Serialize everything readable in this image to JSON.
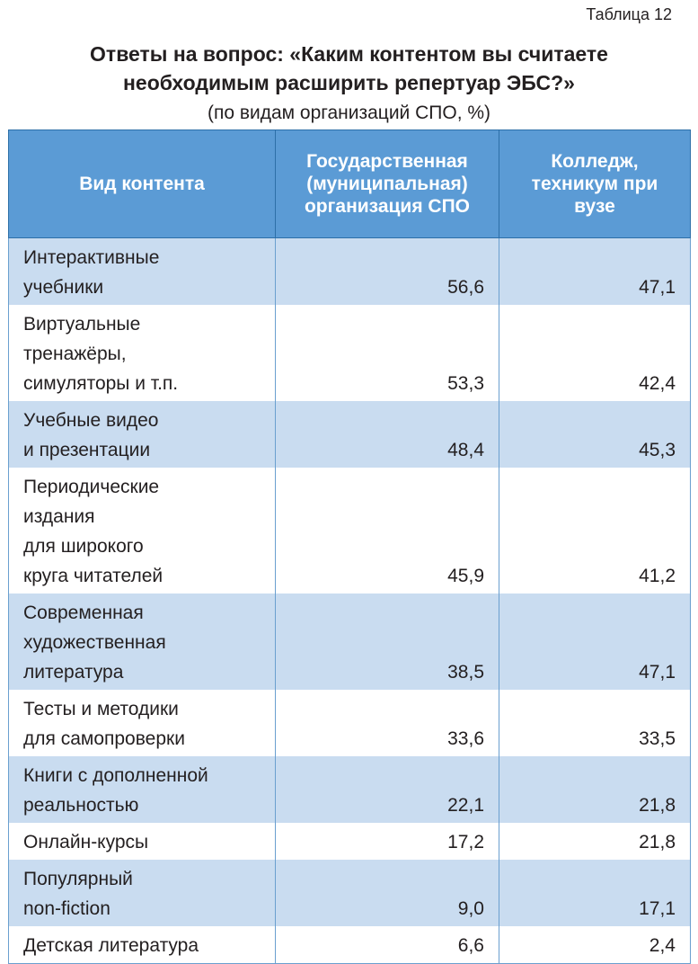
{
  "table_number": "Таблица 12",
  "title_line1": "Ответы на вопрос: «Каким контентом вы считаете",
  "title_line2": "необходимым расширить репертуар ЭБС?»",
  "subtitle": "(по видам организаций СПО, %)",
  "headers": {
    "col1": "Вид контента",
    "col2": "Государственная (муниципальная) организация СПО",
    "col3": "Колледж, техникум при вузе"
  },
  "rows": [
    {
      "label": "Интерактивные учебники",
      "v1": "56,6",
      "v2": "47,1"
    },
    {
      "label": "Виртуальные тренажёры, симуляторы и т.п.",
      "v1": "53,3",
      "v2": "42,4"
    },
    {
      "label": "Учебные видео и презентации",
      "v1": "48,4",
      "v2": "45,3"
    },
    {
      "label": "Периодические издания для широкого круга читателей",
      "v1": "45,9",
      "v2": "41,2"
    },
    {
      "label": "Современная художественная литература",
      "v1": "38,5",
      "v2": "47,1"
    },
    {
      "label": "Тесты и методики для самопроверки",
      "v1": "33,6",
      "v2": "33,5"
    },
    {
      "label": "Книги с дополненной реальностью",
      "v1": "22,1",
      "v2": "21,8"
    },
    {
      "label": "Онлайн-курсы",
      "v1": "17,2",
      "v2": "21,8"
    },
    {
      "label": "Популярный non-fiction",
      "v1": "9,0",
      "v2": "17,1"
    },
    {
      "label": "Детская литература",
      "v1": "6,6",
      "v2": "2,4"
    }
  ]
}
